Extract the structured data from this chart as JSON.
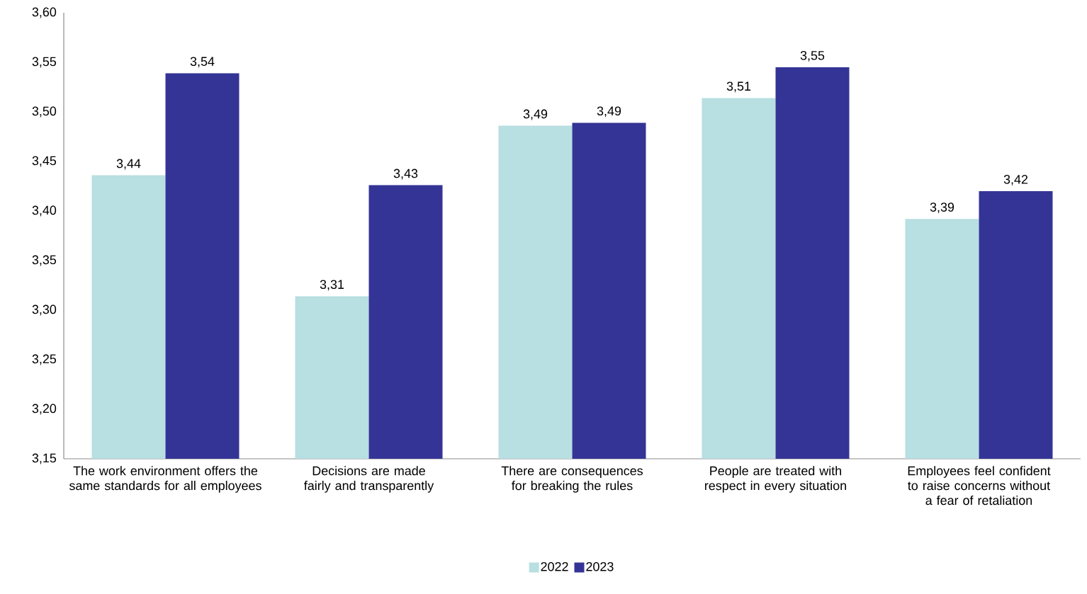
{
  "chart_data": {
    "type": "bar",
    "categories": [
      "The work environment offers the same standards for all employees",
      "Decisions are made fairly and transparently",
      "There are consequences for breaking the rules",
      "People are treated with respect in every situation",
      "Employees feel confident to raise concerns without a fear of retaliation"
    ],
    "series": [
      {
        "name": "2022",
        "color": "#b8dfe2",
        "values": [
          3.436,
          3.314,
          3.486,
          3.514,
          3.392
        ],
        "value_labels": [
          "3,44",
          "3,31",
          "3,49",
          "3,51",
          "3,39"
        ]
      },
      {
        "name": "2023",
        "color": "#343496",
        "values": [
          3.539,
          3.426,
          3.489,
          3.545,
          3.42
        ],
        "value_labels": [
          "3,54",
          "3,43",
          "3,49",
          "3,55",
          "3,42"
        ]
      }
    ],
    "ylim": [
      3.15,
      3.6
    ],
    "yticks": [
      {
        "value": 3.15,
        "label": "3,15"
      },
      {
        "value": 3.2,
        "label": "3,20"
      },
      {
        "value": 3.25,
        "label": "3,25"
      },
      {
        "value": 3.3,
        "label": "3,30"
      },
      {
        "value": 3.35,
        "label": "3,35"
      },
      {
        "value": 3.4,
        "label": "3,40"
      },
      {
        "value": 3.45,
        "label": "3,45"
      },
      {
        "value": 3.5,
        "label": "3,50"
      },
      {
        "value": 3.55,
        "label": "3,55"
      },
      {
        "value": 3.6,
        "label": "3,60"
      }
    ],
    "legend": "bottom"
  }
}
